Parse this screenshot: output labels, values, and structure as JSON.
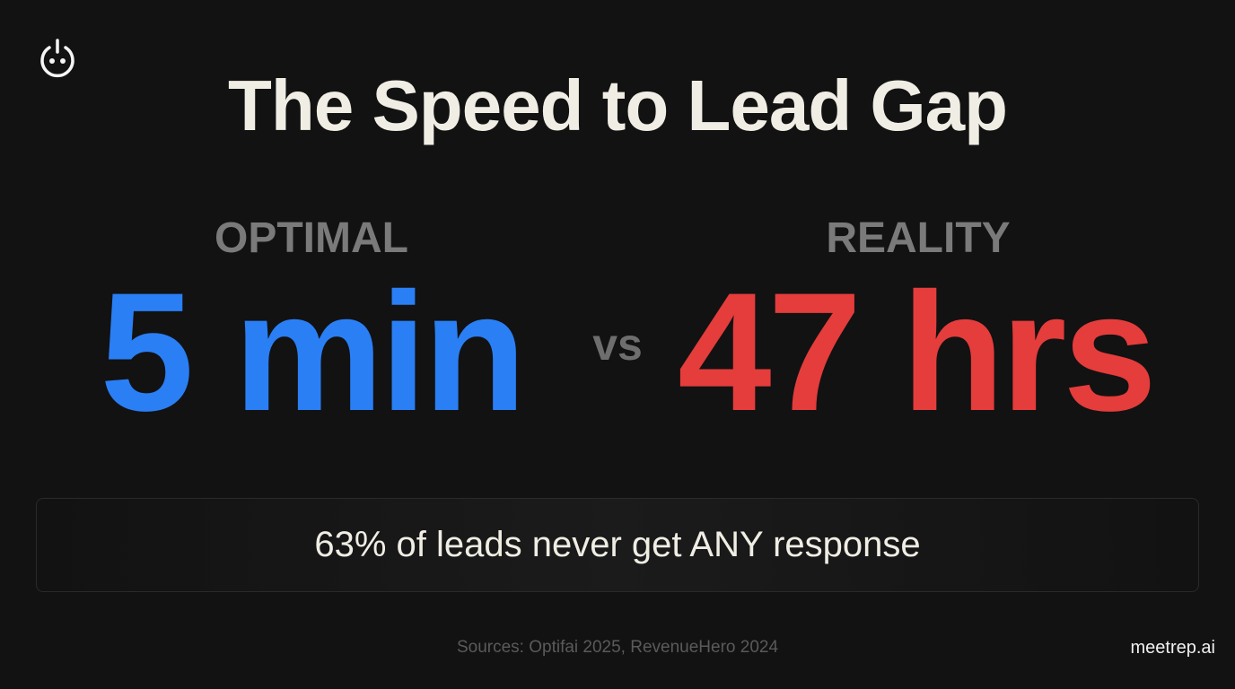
{
  "logo": {
    "icon": "power-face-icon"
  },
  "title": "The Speed to Lead Gap",
  "optimal": {
    "label": "OPTIMAL",
    "value": "5 min",
    "color": "#2a7ff5"
  },
  "vs": "vs",
  "reality": {
    "label": "REALITY",
    "value": "47 hrs",
    "color": "#e53c3c"
  },
  "callout": "63% of leads never get ANY response",
  "footer": {
    "sources": "Sources: Optifai 2025, RevenueHero 2024",
    "brand": "meetrep.ai"
  }
}
